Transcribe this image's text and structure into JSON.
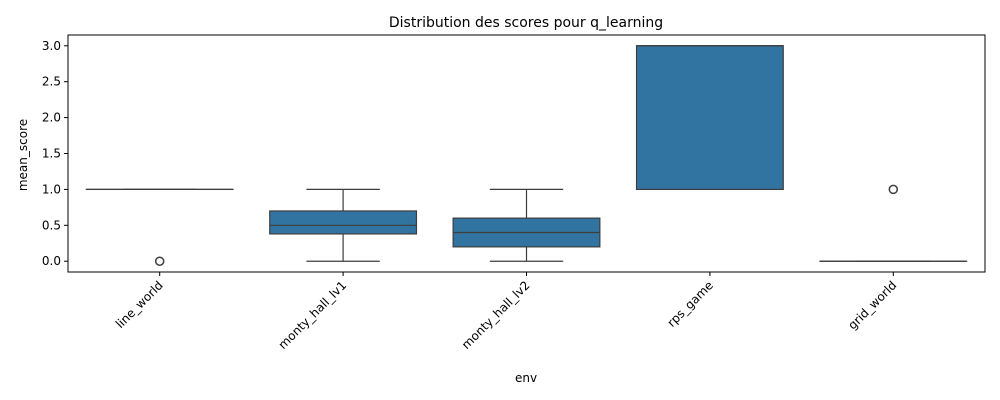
{
  "chart_data": {
    "type": "box",
    "title": "Distribution des scores pour q_learning",
    "xlabel": "env",
    "ylabel": "mean_score",
    "ylim": [
      -0.15,
      3.15
    ],
    "yticks": [
      "0.0",
      "0.5",
      "1.0",
      "1.5",
      "2.0",
      "2.5",
      "3.0"
    ],
    "box_color": "#3274a1",
    "categories": [
      "line_world",
      "monty_hall_lv1",
      "monty_hall_lv2",
      "rps_game",
      "grid_world"
    ],
    "boxes": [
      {
        "q1": 1.0,
        "median": 1.0,
        "q3": 1.0,
        "whisker_low": 1.0,
        "whisker_high": 1.0,
        "outliers": [
          0.0
        ]
      },
      {
        "q1": 0.38,
        "median": 0.5,
        "q3": 0.7,
        "whisker_low": 0.0,
        "whisker_high": 1.0,
        "outliers": []
      },
      {
        "q1": 0.2,
        "median": 0.4,
        "q3": 0.6,
        "whisker_low": 0.0,
        "whisker_high": 1.0,
        "outliers": []
      },
      {
        "q1": 1.0,
        "median": 3.0,
        "q3": 3.0,
        "whisker_low": 1.0,
        "whisker_high": 3.0,
        "outliers": []
      },
      {
        "q1": 0.0,
        "median": 0.0,
        "q3": 0.0,
        "whisker_low": 0.0,
        "whisker_high": 0.0,
        "outliers": [
          1.0
        ]
      }
    ]
  }
}
